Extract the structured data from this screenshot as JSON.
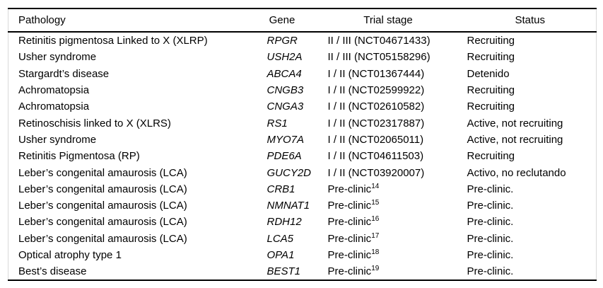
{
  "page": {
    "background": "#ffffff",
    "colors": {
      "text": "#000000",
      "horizontal_rule": "#000000",
      "side_frame": "#d9d9d9"
    }
  },
  "table": {
    "columns": [
      {
        "key": "pathology",
        "label": "Pathology"
      },
      {
        "key": "gene",
        "label": "Gene"
      },
      {
        "key": "trial_stage",
        "label": "Trial stage"
      },
      {
        "key": "status",
        "label": "Status"
      }
    ],
    "rows": [
      {
        "pathology": "Retinitis pigmentosa Linked to X (XLRP)",
        "gene": "RPGR",
        "trial_stage": "II / III (NCT04671433)",
        "reference": "",
        "status": "Recruiting"
      },
      {
        "pathology": "Usher syndrome",
        "gene": "USH2A",
        "trial_stage": "II / III (NCT05158296)",
        "reference": "",
        "status": "Recruiting"
      },
      {
        "pathology": "Stargardt’s disease",
        "gene": "ABCA4",
        "trial_stage": "I / II (NCT01367444)",
        "reference": "",
        "status": "Detenido"
      },
      {
        "pathology": "Achromatopsia",
        "gene": "CNGB3",
        "trial_stage": "I / II (NCT02599922)",
        "reference": "",
        "status": "Recruiting"
      },
      {
        "pathology": "Achromatopsia",
        "gene": "CNGA3",
        "trial_stage": "I / II (NCT02610582)",
        "reference": "",
        "status": "Recruiting"
      },
      {
        "pathology": "Retinoschisis linked to X (XLRS)",
        "gene": "RS1",
        "trial_stage": "I / II (NCT02317887)",
        "reference": "",
        "status": "Active, not recruiting"
      },
      {
        "pathology": "Usher syndrome",
        "gene": "MYO7A",
        "trial_stage": "I / II (NCT02065011)",
        "reference": "",
        "status": "Active, not recruiting"
      },
      {
        "pathology": "Retinitis Pigmentosa (RP)",
        "gene": "PDE6A",
        "trial_stage": "I / II (NCT04611503)",
        "reference": "",
        "status": "Recruiting"
      },
      {
        "pathology": "Leber’s congenital amaurosis (LCA)",
        "gene": "GUCY2D",
        "trial_stage": "I / II (NCT03920007)",
        "reference": "",
        "status": "Activo, no reclutando"
      },
      {
        "pathology": "Leber’s congenital amaurosis (LCA)",
        "gene": "CRB1",
        "trial_stage": "Pre-clinic",
        "reference": "14",
        "status": "Pre-clinic."
      },
      {
        "pathology": "Leber’s congenital amaurosis (LCA)",
        "gene": "NMNAT1",
        "trial_stage": "Pre-clinic",
        "reference": "15",
        "status": "Pre-clinic."
      },
      {
        "pathology": "Leber’s congenital amaurosis (LCA)",
        "gene": "RDH12",
        "trial_stage": "Pre-clinic",
        "reference": "16",
        "status": "Pre-clinic."
      },
      {
        "pathology": "Leber’s congenital amaurosis (LCA)",
        "gene": "LCA5",
        "trial_stage": "Pre-clinic",
        "reference": "17",
        "status": "Pre-clinic."
      },
      {
        "pathology": "Optical atrophy type 1",
        "gene": "OPA1",
        "trial_stage": "Pre-clinic",
        "reference": "18",
        "status": "Pre-clinic."
      },
      {
        "pathology": "Best’s disease",
        "gene": "BEST1",
        "trial_stage": "Pre-clinic",
        "reference": "19",
        "status": "Pre-clinic."
      }
    ]
  }
}
